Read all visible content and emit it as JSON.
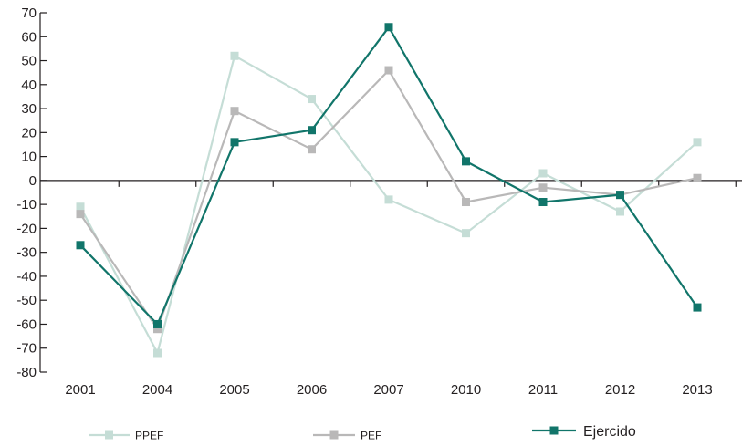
{
  "chart_data": {
    "type": "line",
    "title": "",
    "xlabel": "",
    "ylabel": "",
    "categories": [
      "2001",
      "2004",
      "2005",
      "2006",
      "2007",
      "2010",
      "2011",
      "2012",
      "2013"
    ],
    "ylim": [
      -80,
      70
    ],
    "yticks": [
      70,
      60,
      50,
      40,
      30,
      20,
      10,
      0,
      -10,
      -20,
      -30,
      -40,
      -50,
      -60,
      -70,
      -80
    ],
    "grid": false,
    "legend_position": "bottom",
    "series": [
      {
        "name": "PPEF",
        "color": "#c5ddd6",
        "values": [
          -11,
          -72,
          52,
          34,
          -8,
          -22,
          3,
          -13,
          16
        ]
      },
      {
        "name": "PEF",
        "color": "#b9b8b8",
        "values": [
          -14,
          -62,
          29,
          13,
          46,
          -9,
          -3,
          -6,
          1
        ]
      },
      {
        "name": "Ejercido",
        "color": "#11756a",
        "values": [
          -27,
          -60,
          16,
          21,
          64,
          8,
          -9,
          -6,
          -53
        ]
      }
    ]
  }
}
